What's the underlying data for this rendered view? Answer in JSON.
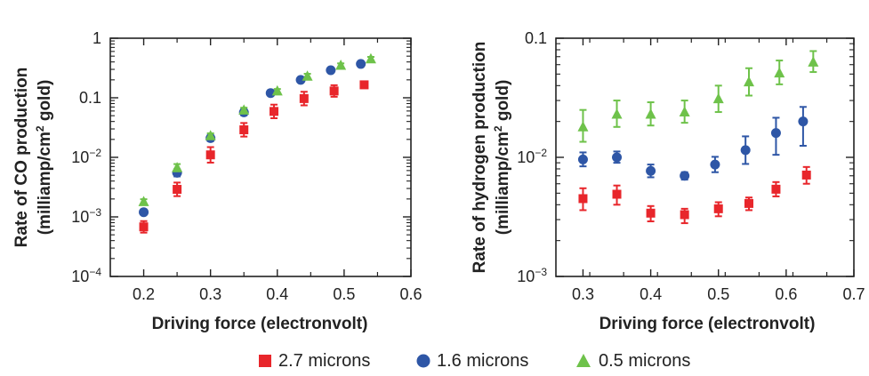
{
  "colors": {
    "red": "#e8262b",
    "blue": "#2e56a6",
    "green": "#6ec24a",
    "axis": "#222222"
  },
  "legend": [
    {
      "label": "2.7 microns",
      "color": "#e8262b",
      "marker": "square"
    },
    {
      "label": "1.6 microns",
      "color": "#2e56a6",
      "marker": "circle"
    },
    {
      "label": "0.5 microns",
      "color": "#6ec24a",
      "marker": "triangle"
    }
  ],
  "chart_data": [
    {
      "type": "scatter",
      "title": "",
      "xlabel": "Driving force (electronvolt)",
      "ylabel_line1": "Rate of CO production",
      "ylabel_line2_pre": "(milliamp/cm",
      "ylabel_line2_sup": "2",
      "ylabel_line2_post": " gold)",
      "xlim": [
        0.15,
        0.6
      ],
      "ylim": [
        0.0001,
        1
      ],
      "yscale": "log",
      "xticks": [
        0.2,
        0.3,
        0.4,
        0.5,
        0.6
      ],
      "xtick_labels": [
        "0.2",
        "0.3",
        "0.4",
        "0.5",
        "0.6"
      ],
      "yticks": [
        {
          "value": 1,
          "base": "1",
          "exp": ""
        },
        {
          "value": 0.1,
          "base": "0.1",
          "exp": ""
        },
        {
          "value": 0.01,
          "base": "10",
          "exp": "−2"
        },
        {
          "value": 0.001,
          "base": "10",
          "exp": "−3"
        },
        {
          "value": 0.0001,
          "base": "10",
          "exp": "−4"
        }
      ],
      "series": [
        {
          "name": "2.7 microns",
          "color": "#e8262b",
          "marker": "square",
          "x": [
            0.2,
            0.25,
            0.3,
            0.35,
            0.395,
            0.44,
            0.485,
            0.53
          ],
          "y": [
            0.00068,
            0.0029,
            0.011,
            0.029,
            0.059,
            0.097,
            0.13,
            0.165
          ],
          "err_factor": [
            1.25,
            1.3,
            1.35,
            1.3,
            1.3,
            1.3,
            1.25,
            1.1
          ]
        },
        {
          "name": "1.6 microns",
          "color": "#2e56a6",
          "marker": "circle",
          "x": [
            0.2,
            0.25,
            0.3,
            0.35,
            0.39,
            0.435,
            0.48,
            0.525
          ],
          "y": [
            0.0012,
            0.0055,
            0.021,
            0.057,
            0.12,
            0.2,
            0.29,
            0.37
          ],
          "err_factor": [
            1.1,
            1.15,
            1.12,
            1.12,
            1.1,
            1.08,
            1.06,
            1.05
          ]
        },
        {
          "name": "0.5 microns",
          "color": "#6ec24a",
          "marker": "triangle",
          "x": [
            0.2,
            0.25,
            0.3,
            0.35,
            0.4,
            0.445,
            0.495,
            0.54
          ],
          "y": [
            0.0018,
            0.0067,
            0.023,
            0.062,
            0.13,
            0.23,
            0.35,
            0.45
          ],
          "err_factor": [
            1.1,
            1.15,
            1.1,
            1.1,
            1.08,
            1.1,
            1.08,
            1.08
          ]
        }
      ]
    },
    {
      "type": "scatter",
      "title": "",
      "xlabel": "Driving force (electronvolt)",
      "ylabel_line1": "Rate of hydrogen production",
      "ylabel_line2_pre": "(milliamp/cm",
      "ylabel_line2_sup": "2",
      "ylabel_line2_post": " gold)",
      "xlim": [
        0.26,
        0.7
      ],
      "ylim": [
        0.001,
        0.1
      ],
      "yscale": "log",
      "xticks": [
        0.3,
        0.4,
        0.5,
        0.6,
        0.7
      ],
      "xtick_labels": [
        "0.3",
        "0.4",
        "0.5",
        "0.6",
        "0.7"
      ],
      "yticks": [
        {
          "value": 0.1,
          "base": "0.1",
          "exp": ""
        },
        {
          "value": 0.01,
          "base": "10",
          "exp": "−2"
        },
        {
          "value": 0.001,
          "base": "10",
          "exp": "−3"
        }
      ],
      "series": [
        {
          "name": "2.7 microns",
          "color": "#e8262b",
          "marker": "square",
          "x": [
            0.3,
            0.35,
            0.4,
            0.45,
            0.5,
            0.545,
            0.585,
            0.63
          ],
          "y": [
            0.0045,
            0.0049,
            0.0034,
            0.0033,
            0.0037,
            0.0041,
            0.0054,
            0.0071
          ],
          "err_upper": [
            0.0055,
            0.0058,
            0.0039,
            0.0037,
            0.0042,
            0.0046,
            0.0062,
            0.0083
          ],
          "err_lower": [
            0.0036,
            0.004,
            0.0029,
            0.0028,
            0.0032,
            0.0036,
            0.0047,
            0.006
          ]
        },
        {
          "name": "1.6 microns",
          "color": "#2e56a6",
          "marker": "circle",
          "x": [
            0.3,
            0.35,
            0.4,
            0.45,
            0.495,
            0.54,
            0.585,
            0.625
          ],
          "y": [
            0.0096,
            0.01,
            0.0077,
            0.007,
            0.0087,
            0.0115,
            0.016,
            0.02
          ],
          "err_upper": [
            0.011,
            0.0112,
            0.0087,
            0.0075,
            0.0101,
            0.015,
            0.0215,
            0.0265
          ],
          "err_lower": [
            0.0084,
            0.009,
            0.0068,
            0.0065,
            0.0075,
            0.0088,
            0.0105,
            0.0125
          ]
        },
        {
          "name": "0.5 microns",
          "color": "#6ec24a",
          "marker": "triangle",
          "x": [
            0.3,
            0.35,
            0.4,
            0.45,
            0.5,
            0.545,
            0.59,
            0.64
          ],
          "y": [
            0.018,
            0.023,
            0.023,
            0.024,
            0.031,
            0.043,
            0.051,
            0.063
          ],
          "err_upper": [
            0.025,
            0.03,
            0.029,
            0.03,
            0.04,
            0.056,
            0.065,
            0.078
          ],
          "err_lower": [
            0.0135,
            0.018,
            0.0185,
            0.0195,
            0.024,
            0.033,
            0.041,
            0.052
          ]
        }
      ]
    }
  ]
}
